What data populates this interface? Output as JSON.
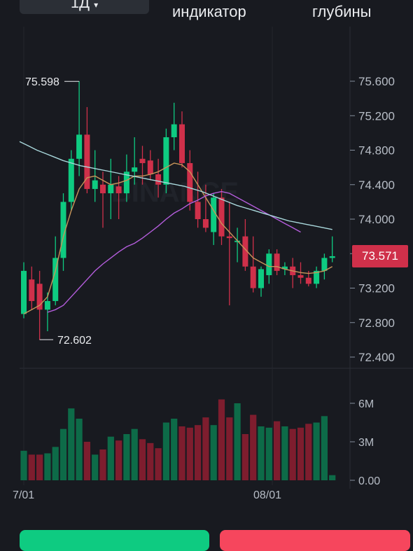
{
  "header": {
    "timeframe": "1Д",
    "indicator_tab": "индикатор",
    "depth_tab": "глубины",
    "icons": [
      "chevron-down-icon"
    ]
  },
  "watermark": "BINANCE",
  "last_price_tag": "73.571",
  "chart_data": {
    "type": "candlestick",
    "price_axis": {
      "ticks": [
        "75.600",
        "75.200",
        "74.800",
        "74.400",
        "74.000",
        "73.600",
        "73.200",
        "72.800",
        "72.400"
      ],
      "range": [
        72.3,
        75.75
      ]
    },
    "volume_axis": {
      "ticks": [
        "6M",
        "3M",
        "0.00"
      ],
      "range": [
        0,
        6
      ]
    },
    "date_ticks": [
      "7/01",
      "08/01"
    ],
    "annotations": {
      "high": "75.598",
      "low": "72.602"
    },
    "last_price": 73.571,
    "colors": {
      "up": "#0ecb81",
      "down": "#cf304a",
      "vol_up": "#0d6b48",
      "vol_down": "#7e1d2e",
      "ma_fast": "#c8955a",
      "ma_mid": "#b45ddc",
      "ma_slow": "#a9d8dc"
    },
    "candles": [
      {
        "o": 72.9,
        "h": 73.5,
        "l": 72.85,
        "c": 73.4,
        "v": 2.3
      },
      {
        "o": 73.3,
        "h": 73.45,
        "l": 72.95,
        "c": 73.05,
        "v": 2.0
      },
      {
        "o": 73.25,
        "h": 73.4,
        "l": 72.6,
        "c": 72.95,
        "v": 2.0
      },
      {
        "o": 72.95,
        "h": 73.15,
        "l": 72.7,
        "c": 73.05,
        "v": 2.1
      },
      {
        "o": 73.05,
        "h": 73.8,
        "l": 73.0,
        "c": 73.55,
        "v": 2.6
      },
      {
        "o": 73.55,
        "h": 74.3,
        "l": 73.4,
        "c": 74.2,
        "v": 4.0
      },
      {
        "o": 74.2,
        "h": 74.8,
        "l": 74.1,
        "c": 74.7,
        "v": 5.6
      },
      {
        "o": 74.7,
        "h": 75.6,
        "l": 74.5,
        "c": 74.98,
        "v": 4.8
      },
      {
        "o": 74.98,
        "h": 75.3,
        "l": 74.3,
        "c": 74.35,
        "v": 3.0
      },
      {
        "o": 74.35,
        "h": 74.8,
        "l": 74.2,
        "c": 74.45,
        "v": 2.0
      },
      {
        "o": 74.4,
        "h": 74.55,
        "l": 73.9,
        "c": 74.3,
        "v": 2.4
      },
      {
        "o": 74.3,
        "h": 74.7,
        "l": 74.0,
        "c": 74.4,
        "v": 3.4
      },
      {
        "o": 74.38,
        "h": 74.5,
        "l": 74.0,
        "c": 74.3,
        "v": 3.1
      },
      {
        "o": 74.3,
        "h": 74.75,
        "l": 74.2,
        "c": 74.55,
        "v": 3.6
      },
      {
        "o": 74.55,
        "h": 74.95,
        "l": 74.4,
        "c": 74.6,
        "v": 4.0
      },
      {
        "o": 74.7,
        "h": 74.85,
        "l": 74.4,
        "c": 74.65,
        "v": 3.2
      },
      {
        "o": 74.68,
        "h": 74.8,
        "l": 74.45,
        "c": 74.52,
        "v": 2.9
      },
      {
        "o": 74.52,
        "h": 74.7,
        "l": 74.25,
        "c": 74.4,
        "v": 2.5
      },
      {
        "o": 74.4,
        "h": 75.05,
        "l": 74.3,
        "c": 74.95,
        "v": 4.5
      },
      {
        "o": 74.95,
        "h": 75.35,
        "l": 74.8,
        "c": 75.1,
        "v": 4.8
      },
      {
        "o": 75.1,
        "h": 75.25,
        "l": 74.6,
        "c": 74.65,
        "v": 4.2
      },
      {
        "o": 74.65,
        "h": 74.8,
        "l": 74.1,
        "c": 74.2,
        "v": 4.1
      },
      {
        "o": 74.2,
        "h": 74.55,
        "l": 73.9,
        "c": 74.0,
        "v": 4.3
      },
      {
        "o": 74.0,
        "h": 74.4,
        "l": 73.85,
        "c": 73.9,
        "v": 4.9
      },
      {
        "o": 73.85,
        "h": 74.3,
        "l": 73.7,
        "c": 74.25,
        "v": 4.3
      },
      {
        "o": 74.25,
        "h": 74.35,
        "l": 73.7,
        "c": 73.8,
        "v": 6.3
      },
      {
        "o": 73.8,
        "h": 74.2,
        "l": 73.0,
        "c": 73.78,
        "v": 4.9
      },
      {
        "o": 73.75,
        "h": 73.9,
        "l": 73.5,
        "c": 73.75,
        "v": 6.0
      },
      {
        "o": 73.8,
        "h": 74.0,
        "l": 73.4,
        "c": 73.45,
        "v": 3.6
      },
      {
        "o": 73.45,
        "h": 73.8,
        "l": 73.15,
        "c": 73.2,
        "v": 5.1
      },
      {
        "o": 73.2,
        "h": 73.45,
        "l": 73.1,
        "c": 73.42,
        "v": 4.2
      },
      {
        "o": 73.35,
        "h": 73.65,
        "l": 73.25,
        "c": 73.6,
        "v": 4.1
      },
      {
        "o": 73.6,
        "h": 73.65,
        "l": 73.35,
        "c": 73.4,
        "v": 4.6
      },
      {
        "o": 73.42,
        "h": 73.5,
        "l": 73.35,
        "c": 73.45,
        "v": 4.2
      },
      {
        "o": 73.45,
        "h": 73.55,
        "l": 73.2,
        "c": 73.35,
        "v": 4.0
      },
      {
        "o": 73.35,
        "h": 73.5,
        "l": 73.25,
        "c": 73.32,
        "v": 4.1
      },
      {
        "o": 73.32,
        "h": 73.4,
        "l": 73.22,
        "c": 73.25,
        "v": 4.4
      },
      {
        "o": 73.25,
        "h": 73.45,
        "l": 73.2,
        "c": 73.4,
        "v": 4.5
      },
      {
        "o": 73.4,
        "h": 73.6,
        "l": 73.3,
        "c": 73.55,
        "v": 5.0
      },
      {
        "o": 73.55,
        "h": 73.8,
        "l": 73.5,
        "c": 73.57,
        "v": 0.4
      }
    ],
    "series": [
      {
        "key": "ma_fast",
        "values": [
          72.9,
          72.95,
          73.0,
          73.1,
          73.4,
          73.8,
          74.1,
          74.35,
          74.48,
          74.5,
          74.45,
          74.4,
          74.42,
          74.45,
          74.5,
          74.5,
          74.52,
          74.55,
          74.6,
          74.65,
          74.63,
          74.55,
          74.4,
          74.25,
          74.1,
          73.95,
          73.85,
          73.75,
          73.65,
          73.55,
          73.5,
          73.45,
          73.45,
          73.42,
          73.4,
          73.38,
          73.37,
          73.38,
          73.4,
          73.45
        ]
      },
      {
        "key": "ma_mid",
        "x0": 3,
        "values": [
          72.92,
          72.95,
          73.0,
          73.1,
          73.2,
          73.3,
          73.4,
          73.48,
          73.55,
          73.62,
          73.68,
          73.72,
          73.78,
          73.85,
          73.92,
          74.0,
          74.07,
          74.12,
          74.18,
          74.22,
          74.27,
          74.3,
          74.32,
          74.3,
          74.25,
          74.2,
          74.15,
          74.1,
          74.05,
          74.0,
          73.95,
          73.9,
          73.85
        ]
      },
      {
        "key": "ma_slow",
        "x0": 0,
        "x_start": -1.3,
        "values": [
          74.9,
          74.85,
          74.8,
          74.76,
          74.72,
          74.68,
          74.65,
          74.62,
          74.6,
          74.58,
          74.56,
          74.54,
          74.52,
          74.5,
          74.48,
          74.46,
          74.44,
          74.42,
          74.4,
          74.38,
          74.35,
          74.32,
          74.28,
          74.24,
          74.2,
          74.16,
          74.13,
          74.1,
          74.07,
          74.04,
          74.01,
          73.98,
          73.96,
          73.94,
          73.92,
          73.9,
          73.88
        ]
      }
    ]
  }
}
